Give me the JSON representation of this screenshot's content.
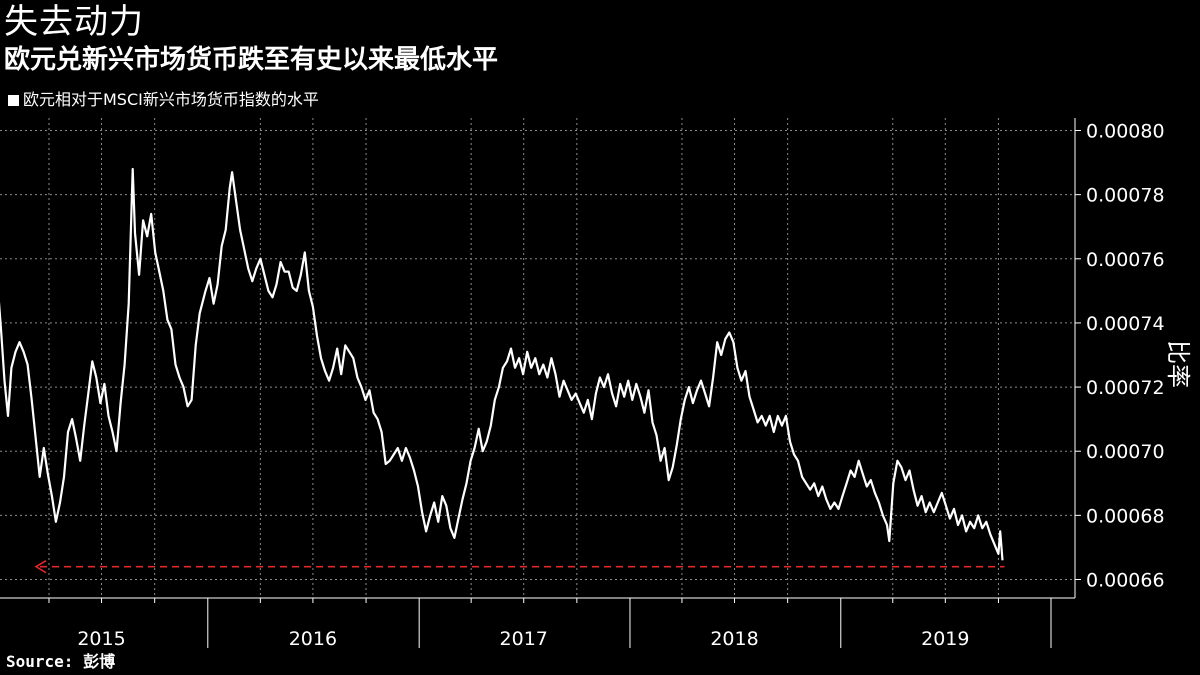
{
  "title": "失去动力",
  "subtitle": "欧元兑新兴市场货币跌至有史以来最低水平",
  "source": "Source: 彭博",
  "colors": {
    "background": "#000000",
    "series": "#ffffff",
    "reference": "#e0282a",
    "grid": "#8a8a8a"
  },
  "chart_data": {
    "type": "line",
    "ylabel": "比率",
    "ylim": [
      0.00065,
      0.0008
    ],
    "yticks": [
      "0.00080",
      "0.00078",
      "0.00076",
      "0.00074",
      "0.00072",
      "0.00070",
      "0.00068",
      "0.00066"
    ],
    "xlim": [
      "2015-01-01",
      "2019-12-31"
    ],
    "year_labels": [
      "2015",
      "2016",
      "2017",
      "2018",
      "2019"
    ],
    "grid": true,
    "legend_position": "top-left",
    "series": [
      {
        "name": "欧元相对于MSCI新兴市场货币指数的水平",
        "points": [
          [
            "2015-01-02",
            0.000752
          ],
          [
            "2015-01-08",
            0.000738
          ],
          [
            "2015-01-14",
            0.000722
          ],
          [
            "2015-01-20",
            0.000711
          ],
          [
            "2015-01-26",
            0.000726
          ],
          [
            "2015-02-02",
            0.000731
          ],
          [
            "2015-02-09",
            0.000734
          ],
          [
            "2015-02-16",
            0.000731
          ],
          [
            "2015-02-23",
            0.000727
          ],
          [
            "2015-03-02",
            0.000716
          ],
          [
            "2015-03-09",
            0.000704
          ],
          [
            "2015-03-16",
            0.000692
          ],
          [
            "2015-03-23",
            0.000701
          ],
          [
            "2015-03-30",
            0.000693
          ],
          [
            "2015-04-06",
            0.000686
          ],
          [
            "2015-04-13",
            0.000678
          ],
          [
            "2015-04-20",
            0.000684
          ],
          [
            "2015-04-27",
            0.000692
          ],
          [
            "2015-05-04",
            0.000706
          ],
          [
            "2015-05-11",
            0.00071
          ],
          [
            "2015-05-18",
            0.000704
          ],
          [
            "2015-05-25",
            0.000697
          ],
          [
            "2015-06-01",
            0.000708
          ],
          [
            "2015-06-08",
            0.000718
          ],
          [
            "2015-06-15",
            0.000728
          ],
          [
            "2015-06-22",
            0.000723
          ],
          [
            "2015-06-29",
            0.000715
          ],
          [
            "2015-07-06",
            0.000721
          ],
          [
            "2015-07-13",
            0.000711
          ],
          [
            "2015-07-20",
            0.000706
          ],
          [
            "2015-07-27",
            0.0007
          ],
          [
            "2015-08-03",
            0.000715
          ],
          [
            "2015-08-10",
            0.000727
          ],
          [
            "2015-08-17",
            0.000746
          ],
          [
            "2015-08-24",
            0.000788
          ],
          [
            "2015-08-28",
            0.000768
          ],
          [
            "2015-09-04",
            0.000755
          ],
          [
            "2015-09-11",
            0.000772
          ],
          [
            "2015-09-18",
            0.000767
          ],
          [
            "2015-09-25",
            0.000774
          ],
          [
            "2015-10-02",
            0.000762
          ],
          [
            "2015-10-09",
            0.000756
          ],
          [
            "2015-10-16",
            0.00075
          ],
          [
            "2015-10-23",
            0.000741
          ],
          [
            "2015-10-30",
            0.000738
          ],
          [
            "2015-11-06",
            0.000727
          ],
          [
            "2015-11-13",
            0.000723
          ],
          [
            "2015-11-20",
            0.00072
          ],
          [
            "2015-11-27",
            0.000714
          ],
          [
            "2015-12-04",
            0.000716
          ],
          [
            "2015-12-11",
            0.000733
          ],
          [
            "2015-12-18",
            0.000743
          ],
          [
            "2015-12-28",
            0.00075
          ],
          [
            "2016-01-04",
            0.000754
          ],
          [
            "2016-01-11",
            0.000746
          ],
          [
            "2016-01-18",
            0.000752
          ],
          [
            "2016-01-25",
            0.000764
          ],
          [
            "2016-02-01",
            0.000769
          ],
          [
            "2016-02-08",
            0.000782
          ],
          [
            "2016-02-12",
            0.000787
          ],
          [
            "2016-02-19",
            0.000778
          ],
          [
            "2016-02-26",
            0.000769
          ],
          [
            "2016-03-04",
            0.000763
          ],
          [
            "2016-03-11",
            0.000757
          ],
          [
            "2016-03-18",
            0.000753
          ],
          [
            "2016-03-25",
            0.000757
          ],
          [
            "2016-04-01",
            0.00076
          ],
          [
            "2016-04-08",
            0.000755
          ],
          [
            "2016-04-15",
            0.00075
          ],
          [
            "2016-04-22",
            0.000748
          ],
          [
            "2016-04-29",
            0.000752
          ],
          [
            "2016-05-06",
            0.000759
          ],
          [
            "2016-05-13",
            0.000756
          ],
          [
            "2016-05-20",
            0.000756
          ],
          [
            "2016-05-27",
            0.000751
          ],
          [
            "2016-06-03",
            0.00075
          ],
          [
            "2016-06-10",
            0.000755
          ],
          [
            "2016-06-17",
            0.000762
          ],
          [
            "2016-06-24",
            0.00075
          ],
          [
            "2016-07-01",
            0.000745
          ],
          [
            "2016-07-08",
            0.000736
          ],
          [
            "2016-07-15",
            0.000729
          ],
          [
            "2016-07-22",
            0.000725
          ],
          [
            "2016-07-29",
            0.000722
          ],
          [
            "2016-08-05",
            0.000726
          ],
          [
            "2016-08-12",
            0.000732
          ],
          [
            "2016-08-19",
            0.000724
          ],
          [
            "2016-08-26",
            0.000733
          ],
          [
            "2016-09-02",
            0.000731
          ],
          [
            "2016-09-09",
            0.000729
          ],
          [
            "2016-09-16",
            0.000723
          ],
          [
            "2016-09-23",
            0.00072
          ],
          [
            "2016-09-30",
            0.000716
          ],
          [
            "2016-10-07",
            0.000719
          ],
          [
            "2016-10-14",
            0.000712
          ],
          [
            "2016-10-21",
            0.00071
          ],
          [
            "2016-10-28",
            0.000706
          ],
          [
            "2016-11-04",
            0.000696
          ],
          [
            "2016-11-11",
            0.000697
          ],
          [
            "2016-11-18",
            0.000699
          ],
          [
            "2016-11-25",
            0.000701
          ],
          [
            "2016-12-02",
            0.000697
          ],
          [
            "2016-12-09",
            0.000701
          ],
          [
            "2016-12-16",
            0.000698
          ],
          [
            "2016-12-23",
            0.000694
          ],
          [
            "2016-12-30",
            0.000689
          ],
          [
            "2017-01-06",
            0.000681
          ],
          [
            "2017-01-13",
            0.000675
          ],
          [
            "2017-01-20",
            0.00068
          ],
          [
            "2017-01-27",
            0.000684
          ],
          [
            "2017-02-03",
            0.000678
          ],
          [
            "2017-02-10",
            0.000686
          ],
          [
            "2017-02-17",
            0.000683
          ],
          [
            "2017-02-24",
            0.000676
          ],
          [
            "2017-03-03",
            0.000673
          ],
          [
            "2017-03-10",
            0.000679
          ],
          [
            "2017-03-17",
            0.000685
          ],
          [
            "2017-03-24",
            0.00069
          ],
          [
            "2017-03-31",
            0.000697
          ],
          [
            "2017-04-07",
            0.000701
          ],
          [
            "2017-04-14",
            0.000707
          ],
          [
            "2017-04-21",
            0.0007
          ],
          [
            "2017-04-28",
            0.000703
          ],
          [
            "2017-05-05",
            0.000708
          ],
          [
            "2017-05-12",
            0.000716
          ],
          [
            "2017-05-19",
            0.00072
          ],
          [
            "2017-05-26",
            0.000726
          ],
          [
            "2017-06-02",
            0.000728
          ],
          [
            "2017-06-09",
            0.000732
          ],
          [
            "2017-06-16",
            0.000726
          ],
          [
            "2017-06-23",
            0.000729
          ],
          [
            "2017-06-30",
            0.000724
          ],
          [
            "2017-07-07",
            0.000731
          ],
          [
            "2017-07-14",
            0.000726
          ],
          [
            "2017-07-21",
            0.000729
          ],
          [
            "2017-07-28",
            0.000724
          ],
          [
            "2017-08-04",
            0.000727
          ],
          [
            "2017-08-11",
            0.000723
          ],
          [
            "2017-08-18",
            0.000729
          ],
          [
            "2017-08-25",
            0.000724
          ],
          [
            "2017-09-01",
            0.000717
          ],
          [
            "2017-09-08",
            0.000722
          ],
          [
            "2017-09-15",
            0.000719
          ],
          [
            "2017-09-22",
            0.000716
          ],
          [
            "2017-09-29",
            0.000718
          ],
          [
            "2017-10-06",
            0.000715
          ],
          [
            "2017-10-13",
            0.000712
          ],
          [
            "2017-10-20",
            0.000716
          ],
          [
            "2017-10-27",
            0.00071
          ],
          [
            "2017-11-03",
            0.000718
          ],
          [
            "2017-11-10",
            0.000723
          ],
          [
            "2017-11-17",
            0.00072
          ],
          [
            "2017-11-24",
            0.000724
          ],
          [
            "2017-12-01",
            0.000718
          ],
          [
            "2017-12-08",
            0.000714
          ],
          [
            "2017-12-15",
            0.000721
          ],
          [
            "2017-12-22",
            0.000717
          ],
          [
            "2017-12-29",
            0.000722
          ],
          [
            "2018-01-05",
            0.000716
          ],
          [
            "2018-01-12",
            0.000721
          ],
          [
            "2018-01-19",
            0.000717
          ],
          [
            "2018-01-26",
            0.000712
          ],
          [
            "2018-02-02",
            0.000719
          ],
          [
            "2018-02-09",
            0.000709
          ],
          [
            "2018-02-16",
            0.000705
          ],
          [
            "2018-02-23",
            0.000697
          ],
          [
            "2018-03-02",
            0.000701
          ],
          [
            "2018-03-09",
            0.000691
          ],
          [
            "2018-03-16",
            0.000695
          ],
          [
            "2018-03-23",
            0.000702
          ],
          [
            "2018-03-30",
            0.00071
          ],
          [
            "2018-04-06",
            0.000716
          ],
          [
            "2018-04-13",
            0.00072
          ],
          [
            "2018-04-20",
            0.000715
          ],
          [
            "2018-04-27",
            0.000719
          ],
          [
            "2018-05-04",
            0.000722
          ],
          [
            "2018-05-11",
            0.000718
          ],
          [
            "2018-05-18",
            0.000714
          ],
          [
            "2018-05-25",
            0.000723
          ],
          [
            "2018-06-01",
            0.000734
          ],
          [
            "2018-06-08",
            0.00073
          ],
          [
            "2018-06-15",
            0.000735
          ],
          [
            "2018-06-22",
            0.000737
          ],
          [
            "2018-06-29",
            0.000734
          ],
          [
            "2018-07-06",
            0.000726
          ],
          [
            "2018-07-13",
            0.000722
          ],
          [
            "2018-07-20",
            0.000725
          ],
          [
            "2018-07-27",
            0.000717
          ],
          [
            "2018-08-03",
            0.000713
          ],
          [
            "2018-08-10",
            0.000709
          ],
          [
            "2018-08-17",
            0.000711
          ],
          [
            "2018-08-24",
            0.000708
          ],
          [
            "2018-08-31",
            0.000711
          ],
          [
            "2018-09-07",
            0.000706
          ],
          [
            "2018-09-14",
            0.000711
          ],
          [
            "2018-09-21",
            0.000708
          ],
          [
            "2018-09-28",
            0.000711
          ],
          [
            "2018-10-05",
            0.000703
          ],
          [
            "2018-10-12",
            0.000699
          ],
          [
            "2018-10-19",
            0.000697
          ],
          [
            "2018-10-26",
            0.000692
          ],
          [
            "2018-11-02",
            0.00069
          ],
          [
            "2018-11-09",
            0.000688
          ],
          [
            "2018-11-16",
            0.00069
          ],
          [
            "2018-11-23",
            0.000686
          ],
          [
            "2018-11-30",
            0.000689
          ],
          [
            "2018-12-07",
            0.000685
          ],
          [
            "2018-12-14",
            0.000682
          ],
          [
            "2018-12-21",
            0.000684
          ],
          [
            "2018-12-28",
            0.000682
          ],
          [
            "2019-01-04",
            0.000686
          ],
          [
            "2019-01-11",
            0.00069
          ],
          [
            "2019-01-18",
            0.000694
          ],
          [
            "2019-01-25",
            0.000692
          ],
          [
            "2019-02-01",
            0.000697
          ],
          [
            "2019-02-08",
            0.000693
          ],
          [
            "2019-02-15",
            0.000689
          ],
          [
            "2019-02-22",
            0.000691
          ],
          [
            "2019-03-01",
            0.000687
          ],
          [
            "2019-03-08",
            0.000684
          ],
          [
            "2019-03-15",
            0.00068
          ],
          [
            "2019-03-22",
            0.000677
          ],
          [
            "2019-03-26",
            0.000672
          ],
          [
            "2019-04-02",
            0.00069
          ],
          [
            "2019-04-09",
            0.000697
          ],
          [
            "2019-04-16",
            0.000695
          ],
          [
            "2019-04-23",
            0.000691
          ],
          [
            "2019-04-30",
            0.000694
          ],
          [
            "2019-05-07",
            0.000688
          ],
          [
            "2019-05-14",
            0.000683
          ],
          [
            "2019-05-21",
            0.000686
          ],
          [
            "2019-05-28",
            0.000681
          ],
          [
            "2019-06-04",
            0.000684
          ],
          [
            "2019-06-11",
            0.000681
          ],
          [
            "2019-06-18",
            0.000684
          ],
          [
            "2019-06-25",
            0.000687
          ],
          [
            "2019-07-02",
            0.000683
          ],
          [
            "2019-07-09",
            0.000679
          ],
          [
            "2019-07-16",
            0.000682
          ],
          [
            "2019-07-23",
            0.000677
          ],
          [
            "2019-07-30",
            0.00068
          ],
          [
            "2019-08-06",
            0.000675
          ],
          [
            "2019-08-13",
            0.000678
          ],
          [
            "2019-08-20",
            0.000676
          ],
          [
            "2019-08-27",
            0.00068
          ],
          [
            "2019-09-03",
            0.000676
          ],
          [
            "2019-09-10",
            0.000678
          ],
          [
            "2019-09-17",
            0.000674
          ],
          [
            "2019-09-24",
            0.000671
          ],
          [
            "2019-10-01",
            0.000668
          ],
          [
            "2019-10-04",
            0.000675
          ],
          [
            "2019-10-08",
            0.000666
          ]
        ]
      }
    ],
    "reference_line": {
      "y": 0.000664,
      "style": "dashed",
      "direction": "left-arrow",
      "color": "#e0282a"
    }
  }
}
